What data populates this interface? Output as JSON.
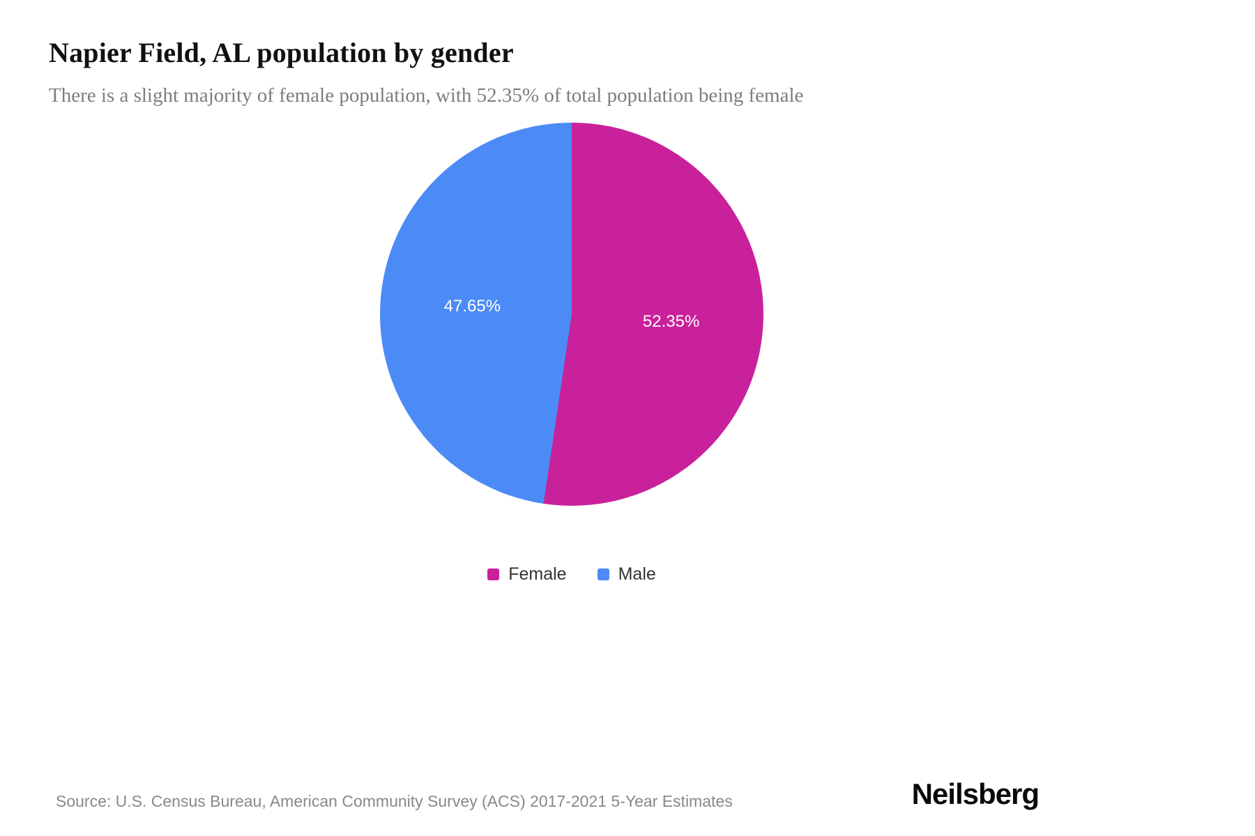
{
  "header": {
    "title": "Napier Field, AL population by gender",
    "subtitle": "There is a slight majority of female population, with 52.35% of total population being female"
  },
  "chart_data": {
    "type": "pie",
    "title": "Napier Field, AL population by gender",
    "categories": [
      "Female",
      "Male"
    ],
    "values": [
      52.35,
      47.65
    ],
    "series": [
      {
        "name": "Female",
        "value": 52.35,
        "label": "52.35%",
        "color": "#c9219b"
      },
      {
        "name": "Male",
        "value": 47.65,
        "label": "47.65%",
        "color": "#4c8bf5"
      }
    ],
    "start_angle_deg": 0,
    "direction": "clockwise",
    "labels_inside": true,
    "legend_position": "bottom"
  },
  "footer": {
    "source": "Source: U.S. Census Bureau, American Community Survey (ACS) 2017-2021 5-Year Estimates",
    "brand": "Neilsberg"
  }
}
